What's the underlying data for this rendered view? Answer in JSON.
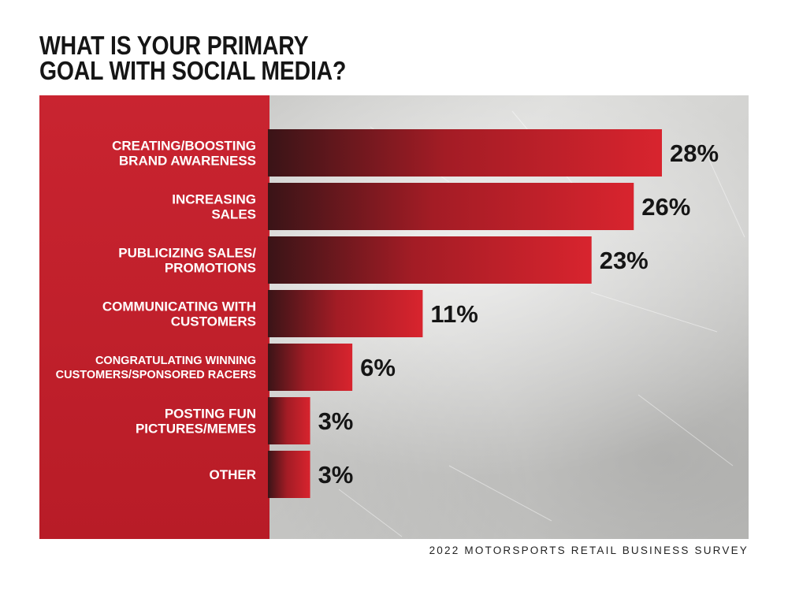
{
  "colors": {
    "sidebar": "#c4202b",
    "bar_light": "#d8242e",
    "bar_dark": "#3a1417",
    "text_dark": "#151515",
    "text_light": "#ffffff"
  },
  "chart_data": {
    "type": "bar",
    "orientation": "horizontal",
    "title": "WHAT IS YOUR PRIMARY GOAL WITH SOCIAL MEDIA?",
    "title_lines": [
      "WHAT IS YOUR PRIMARY",
      "GOAL WITH SOCIAL MEDIA?"
    ],
    "source": "2022 MOTORSPORTS RETAIL BUSINESS SURVEY",
    "categories": [
      [
        "CREATING/BOOSTING",
        "BRAND AWARENESS"
      ],
      [
        "INCREASING",
        "SALES"
      ],
      [
        "PUBLICIZING SALES/",
        "PROMOTIONS"
      ],
      [
        "COMMUNICATING WITH",
        "CUSTOMERS"
      ],
      [
        "CONGRATULATING WINNING",
        "CUSTOMERS/SPONSORED RACERS"
      ],
      [
        "POSTING FUN",
        "PICTURES/MEMES"
      ],
      [
        "OTHER"
      ]
    ],
    "values": [
      28,
      26,
      23,
      11,
      6,
      3,
      3
    ],
    "value_labels": [
      "28%",
      "26%",
      "23%",
      "11%",
      "6%",
      "3%",
      "3%"
    ],
    "xlim": [
      0,
      28
    ],
    "grid": false,
    "legend": "none"
  }
}
